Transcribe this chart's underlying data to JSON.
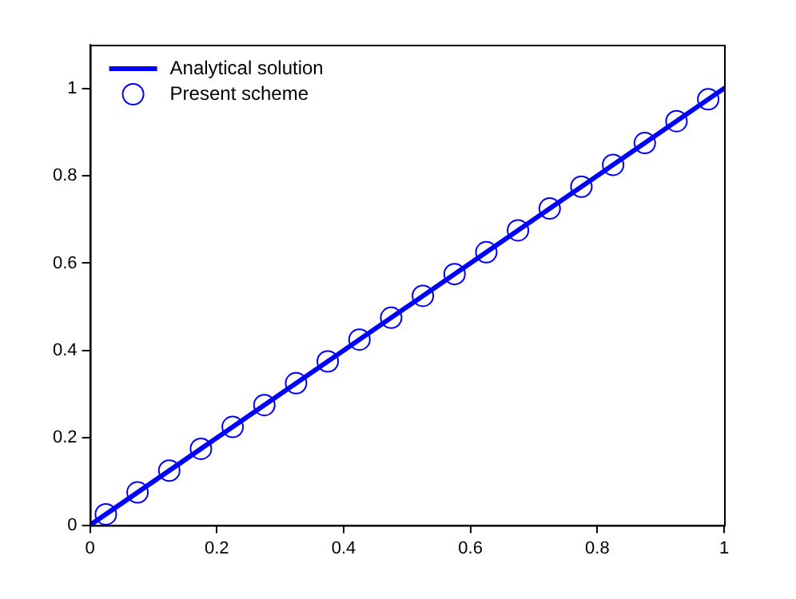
{
  "chart_data": {
    "type": "line",
    "xlim": [
      0,
      1
    ],
    "xticks": [
      0,
      0.2,
      0.4,
      0.6,
      0.8,
      1
    ],
    "ylim": [
      0,
      1.1
    ],
    "yticks": [
      0,
      0.2,
      0.4,
      0.6,
      0.8,
      1
    ],
    "grid": false,
    "legend": "top left",
    "series": [
      {
        "name": "Analytical solution",
        "color": "#0000ff",
        "type": "line",
        "marker": "none",
        "line_style": "solid",
        "x": [
          0,
          1
        ],
        "values": [
          0,
          1
        ]
      },
      {
        "name": "Present scheme",
        "color": "#0000ff",
        "type": "scatter",
        "marker": "circle",
        "x": [
          0.025,
          0.075,
          0.125,
          0.175,
          0.225,
          0.275,
          0.325,
          0.375,
          0.425,
          0.475,
          0.525,
          0.575,
          0.625,
          0.675,
          0.725,
          0.775,
          0.825,
          0.875,
          0.925,
          0.975
        ],
        "values": [
          0.025,
          0.075,
          0.125,
          0.175,
          0.225,
          0.275,
          0.325,
          0.375,
          0.425,
          0.475,
          0.525,
          0.575,
          0.625,
          0.675,
          0.725,
          0.775,
          0.825,
          0.875,
          0.925,
          0.975
        ]
      }
    ]
  }
}
